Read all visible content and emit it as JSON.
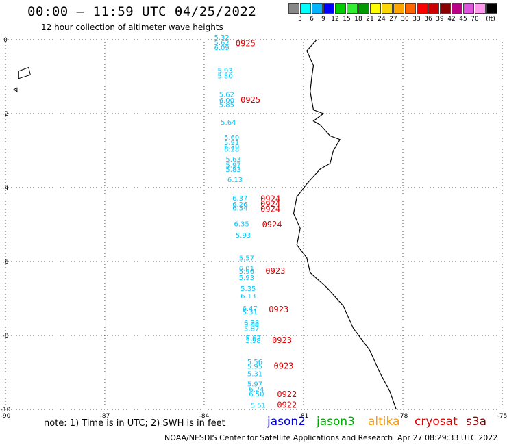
{
  "header": {
    "title": "00:00 – 11:59 UTC 04/25/2022",
    "subtitle": "12 hour collection of altimeter wave heights"
  },
  "legend": {
    "unit": "(ft)",
    "swatches": [
      {
        "color": "#888888",
        "label": ""
      },
      {
        "color": "#00ffff",
        "label": "3"
      },
      {
        "color": "#00b4ff",
        "label": "6"
      },
      {
        "color": "#0000ff",
        "label": "9"
      },
      {
        "color": "#00cc00",
        "label": "12"
      },
      {
        "color": "#33ee33",
        "label": "15"
      },
      {
        "color": "#009900",
        "label": "18"
      },
      {
        "color": "#ffff00",
        "label": "21"
      },
      {
        "color": "#ffd700",
        "label": "24"
      },
      {
        "color": "#ffa500",
        "label": "27"
      },
      {
        "color": "#ff6600",
        "label": "30"
      },
      {
        "color": "#ff0000",
        "label": "33"
      },
      {
        "color": "#cc0000",
        "label": "36"
      },
      {
        "color": "#880000",
        "label": "39"
      },
      {
        "color": "#bb0088",
        "label": "42"
      },
      {
        "color": "#dd55dd",
        "label": "45"
      },
      {
        "color": "#ff99ee",
        "label": "70"
      },
      {
        "color": "#000000",
        "label": ""
      }
    ]
  },
  "axes": {
    "x_ticks": [
      {
        "lon": -90,
        "label": "-90"
      },
      {
        "lon": -87,
        "label": "-87"
      },
      {
        "lon": -84,
        "label": "-84"
      },
      {
        "lon": -81,
        "label": "-81"
      },
      {
        "lon": -78,
        "label": "-78"
      },
      {
        "lon": -75,
        "label": "-75"
      }
    ],
    "y_ticks": [
      {
        "lat": 0,
        "label": "0"
      },
      {
        "lat": -2,
        "label": "-2"
      },
      {
        "lat": -4,
        "label": "-4"
      },
      {
        "lat": -6,
        "label": "-6"
      },
      {
        "lat": -8,
        "label": "-8"
      },
      {
        "lat": -10,
        "label": "-10"
      }
    ],
    "lon_range": [
      -90,
      -75
    ],
    "lat_range": [
      -10,
      0
    ]
  },
  "track": {
    "color": "#00c8ff",
    "points": [
      {
        "lon": -83.7,
        "lat": 0.0,
        "v": "5.32"
      },
      {
        "lon": -83.7,
        "lat": -0.15,
        "v": "5.62"
      },
      {
        "lon": -83.7,
        "lat": -0.28,
        "v": "6.09"
      },
      {
        "lon": -83.6,
        "lat": -0.9,
        "v": "5.93"
      },
      {
        "lon": -83.6,
        "lat": -1.05,
        "v": "5.80"
      },
      {
        "lon": -83.55,
        "lat": -1.55,
        "v": "5.62"
      },
      {
        "lon": -83.55,
        "lat": -1.7,
        "v": "6.00"
      },
      {
        "lon": -83.55,
        "lat": -1.82,
        "v": "5.85"
      },
      {
        "lon": -83.5,
        "lat": -2.3,
        "v": "5.64"
      },
      {
        "lon": -83.4,
        "lat": -2.7,
        "v": "5.60"
      },
      {
        "lon": -83.4,
        "lat": -2.85,
        "v": "5.91"
      },
      {
        "lon": -83.4,
        "lat": -2.95,
        "v": "6.30"
      },
      {
        "lon": -83.4,
        "lat": -3.03,
        "v": "6.28"
      },
      {
        "lon": -83.35,
        "lat": -3.3,
        "v": "5.63"
      },
      {
        "lon": -83.35,
        "lat": -3.45,
        "v": "5.97"
      },
      {
        "lon": -83.35,
        "lat": -3.57,
        "v": "5.83"
      },
      {
        "lon": -83.3,
        "lat": -3.85,
        "v": "6.13"
      },
      {
        "lon": -83.15,
        "lat": -4.35,
        "v": "6.37"
      },
      {
        "lon": -83.15,
        "lat": -4.52,
        "v": "6.26"
      },
      {
        "lon": -83.15,
        "lat": -4.62,
        "v": "6.34"
      },
      {
        "lon": -83.1,
        "lat": -5.05,
        "v": "6.35"
      },
      {
        "lon": -83.05,
        "lat": -5.35,
        "v": "5.93"
      },
      {
        "lon": -82.95,
        "lat": -5.97,
        "v": "5.57"
      },
      {
        "lon": -82.95,
        "lat": -6.25,
        "v": "6.01"
      },
      {
        "lon": -82.95,
        "lat": -6.33,
        "v": "5.96"
      },
      {
        "lon": -82.95,
        "lat": -6.5,
        "v": "5.93"
      },
      {
        "lon": -82.9,
        "lat": -6.8,
        "v": "5.35"
      },
      {
        "lon": -82.9,
        "lat": -7.0,
        "v": "6.13"
      },
      {
        "lon": -82.85,
        "lat": -7.33,
        "v": "6.47"
      },
      {
        "lon": -82.85,
        "lat": -7.43,
        "v": "5.31"
      },
      {
        "lon": -82.8,
        "lat": -7.72,
        "v": "6.28"
      },
      {
        "lon": -82.8,
        "lat": -7.78,
        "v": "5.94"
      },
      {
        "lon": -82.8,
        "lat": -7.88,
        "v": "5.87"
      },
      {
        "lon": -82.75,
        "lat": -8.13,
        "v": "5.62"
      },
      {
        "lon": -82.75,
        "lat": -8.2,
        "v": "5.98"
      },
      {
        "lon": -82.7,
        "lat": -8.78,
        "v": "5.56"
      },
      {
        "lon": -82.7,
        "lat": -8.9,
        "v": "5.95"
      },
      {
        "lon": -82.7,
        "lat": -9.1,
        "v": "5.31"
      },
      {
        "lon": -82.7,
        "lat": -9.38,
        "v": "5.97"
      },
      {
        "lon": -82.65,
        "lat": -9.52,
        "v": "6.24"
      },
      {
        "lon": -82.65,
        "lat": -9.65,
        "v": "6.50"
      },
      {
        "lon": -82.6,
        "lat": -9.95,
        "v": "5.51"
      }
    ]
  },
  "times": {
    "color": "#e00000",
    "items": [
      {
        "lon": -83.05,
        "lat": -0.18,
        "t": "0925"
      },
      {
        "lon": -82.9,
        "lat": -1.7,
        "t": "0925"
      },
      {
        "lon": -82.3,
        "lat": -4.38,
        "t": "0924"
      },
      {
        "lon": -82.3,
        "lat": -4.52,
        "t": "0924"
      },
      {
        "lon": -82.3,
        "lat": -4.66,
        "t": "0924"
      },
      {
        "lon": -82.25,
        "lat": -5.07,
        "t": "0924"
      },
      {
        "lon": -82.15,
        "lat": -6.33,
        "t": "0923"
      },
      {
        "lon": -82.05,
        "lat": -7.37,
        "t": "0923"
      },
      {
        "lon": -81.95,
        "lat": -8.2,
        "t": "0923"
      },
      {
        "lon": -81.9,
        "lat": -8.9,
        "t": "0923"
      },
      {
        "lon": -81.8,
        "lat": -9.67,
        "t": "0922"
      },
      {
        "lon": -81.8,
        "lat": -9.95,
        "t": "0922"
      }
    ]
  },
  "coastline": [
    [
      -80.6,
      0.0
    ],
    [
      -80.9,
      -0.3
    ],
    [
      -80.7,
      -0.7
    ],
    [
      -80.75,
      -1.0
    ],
    [
      -80.8,
      -1.4
    ],
    [
      -80.7,
      -1.9
    ],
    [
      -80.4,
      -2.0
    ],
    [
      -80.7,
      -2.2
    ],
    [
      -80.5,
      -2.3
    ],
    [
      -80.2,
      -2.6
    ],
    [
      -79.9,
      -2.7
    ],
    [
      -80.1,
      -3.0
    ],
    [
      -80.2,
      -3.35
    ],
    [
      -80.5,
      -3.5
    ],
    [
      -80.9,
      -3.9
    ],
    [
      -81.2,
      -4.25
    ],
    [
      -81.3,
      -4.7
    ],
    [
      -81.1,
      -5.1
    ],
    [
      -81.2,
      -5.55
    ],
    [
      -80.9,
      -5.9
    ],
    [
      -80.8,
      -6.3
    ],
    [
      -80.3,
      -6.7
    ],
    [
      -79.8,
      -7.2
    ],
    [
      -79.5,
      -7.8
    ],
    [
      -79.0,
      -8.4
    ],
    [
      -78.7,
      -9.0
    ],
    [
      -78.4,
      -9.5
    ],
    [
      -78.2,
      -10.0
    ]
  ],
  "islands": [
    [
      [
        -89.6,
        -0.85
      ],
      [
        -89.3,
        -0.75
      ],
      [
        -89.25,
        -0.95
      ],
      [
        -89.6,
        -1.05
      ]
    ],
    [
      [
        -89.75,
        -1.35
      ],
      [
        -89.65,
        -1.3
      ],
      [
        -89.65,
        -1.4
      ]
    ]
  ],
  "footer": {
    "note": "note: 1) Time is in UTC; 2) SWH is in feet",
    "satellites": [
      {
        "name": "jason2",
        "color": "#0000dd"
      },
      {
        "name": "jason3",
        "color": "#00aa00"
      },
      {
        "name": "altika",
        "color": "#ff9900"
      },
      {
        "name": "cryosat",
        "color": "#dd0000"
      },
      {
        "name": "s3a",
        "color": "#880000"
      }
    ],
    "credit": "NOAA/NESDIS Center for Satellite Applications and Research",
    "timestamp": "Apr 27 08:29:33 UTC 2022"
  }
}
